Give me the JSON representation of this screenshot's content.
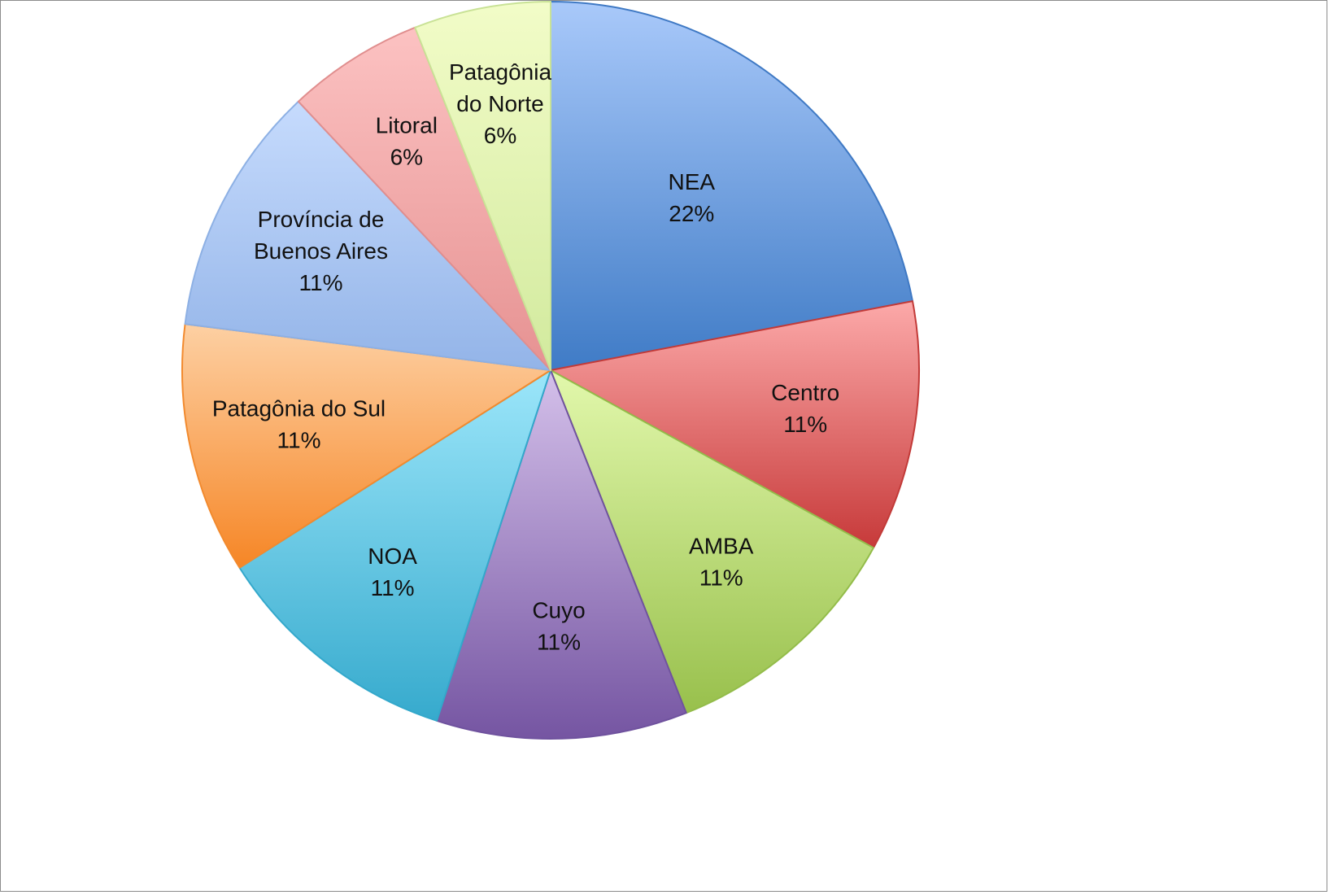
{
  "chart_data": {
    "type": "pie",
    "title": "",
    "start_angle_deg": 0,
    "direction": "clockwise",
    "legend": "none",
    "slices": [
      {
        "label": [
          "NEA"
        ],
        "value": 22,
        "percent_label": "22%",
        "colors": [
          "#A9C9FA",
          "#3F7BC6"
        ],
        "edge": "#3F79C4"
      },
      {
        "label": [
          "Centro"
        ],
        "value": 11,
        "percent_label": "11%",
        "colors": [
          "#FCA9A9",
          "#C73A3A"
        ],
        "edge": "#C23A38"
      },
      {
        "label": [
          "AMBA"
        ],
        "value": 11,
        "percent_label": "11%",
        "colors": [
          "#E2F8AC",
          "#98C04C"
        ],
        "edge": "#93BC4A"
      },
      {
        "label": [
          "Cuyo"
        ],
        "value": 11,
        "percent_label": "11%",
        "colors": [
          "#D4C0EA",
          "#7555A2"
        ],
        "edge": "#6F529E"
      },
      {
        "label": [
          "NOA"
        ],
        "value": 11,
        "percent_label": "11%",
        "colors": [
          "#9CE6FA",
          "#36AACD"
        ],
        "edge": "#33A8CB"
      },
      {
        "label": [
          "Patagônia do Sul"
        ],
        "value": 11,
        "percent_label": "11%",
        "colors": [
          "#FDD0A3",
          "#F68626"
        ],
        "edge": "#F28A2E"
      },
      {
        "label": [
          "Província de",
          "Buenos Aires"
        ],
        "value": 11,
        "percent_label": "11%",
        "colors": [
          "#C6DBFD",
          "#93B4E8"
        ],
        "edge": "#8DB0E4"
      },
      {
        "label": [
          "Litoral"
        ],
        "value": 6,
        "percent_label": "6%",
        "colors": [
          "#FCC2C2",
          "#E69292"
        ],
        "edge": "#E08E8E"
      },
      {
        "label": [
          "Patagônia",
          "do Norte"
        ],
        "value": 6,
        "percent_label": "6%",
        "colors": [
          "#F2FCC8",
          "#D2EA9E"
        ],
        "edge": "#C9E296"
      }
    ]
  }
}
